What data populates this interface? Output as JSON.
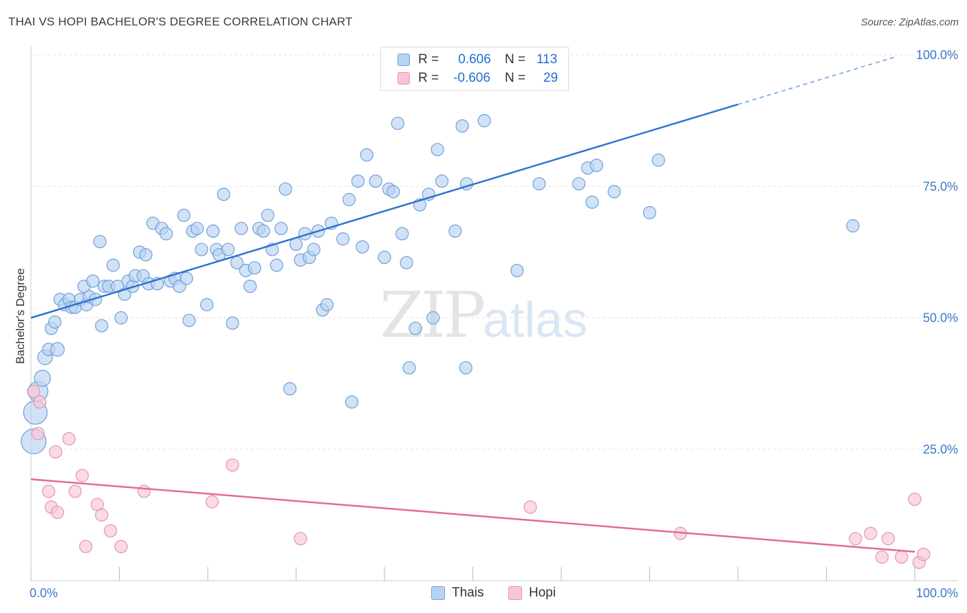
{
  "title": "THAI VS HOPI BACHELOR'S DEGREE CORRELATION CHART",
  "source": "Source: ZipAtlas.com",
  "watermark": {
    "zip": "ZIP",
    "atlas": "atlas"
  },
  "legend": {
    "rows": [
      {
        "r_label": "R =",
        "r_value": "0.606",
        "n_label": "N =",
        "n_value": "113"
      },
      {
        "r_label": "R =",
        "r_value": "-0.606",
        "n_label": "N =",
        "n_value": "29"
      }
    ]
  },
  "bottom_legend": {
    "thais": "Thais",
    "hopi": "Hopi"
  },
  "colors": {
    "thais_fill": "#b8d3f2",
    "thais_stroke": "#6f9fd8",
    "thais_line": "#2f73cf",
    "hopi_fill": "#f7c6d6",
    "hopi_stroke": "#e892ae",
    "hopi_line": "#e36a95",
    "axis_text": "#3b78c9",
    "grid": "#e3e3e3"
  },
  "chart_data": {
    "type": "scatter",
    "title": "THAI VS HOPI BACHELOR'S DEGREE CORRELATION CHART",
    "xlabel": "",
    "ylabel": "Bachelor's Degree",
    "xlim": [
      0,
      100
    ],
    "ylim": [
      0,
      100
    ],
    "x_tick_labels": [
      "0.0%",
      "100.0%"
    ],
    "y_tick_labels": [
      "25.0%",
      "50.0%",
      "75.0%",
      "100.0%"
    ],
    "y_ticks": [
      25,
      50,
      75,
      100
    ],
    "grid": true,
    "legend_position": "top-center",
    "series": [
      {
        "name": "Thais",
        "r": 0.606,
        "n": 113,
        "trend": {
          "x0": 0,
          "y0": 50.0,
          "x1": 80,
          "y1": 90.6,
          "dashed_to": [
            98,
            100
          ]
        },
        "points": [
          [
            0.3,
            26.5,
            2.0
          ],
          [
            0.5,
            32.0,
            1.9
          ],
          [
            0.8,
            36.0,
            1.6
          ],
          [
            1.3,
            38.5,
            1.3
          ],
          [
            1.6,
            42.5,
            1.2
          ],
          [
            2.0,
            44.0,
            1.0
          ],
          [
            3.0,
            44.0,
            1.1
          ],
          [
            2.3,
            48.0,
            1.0
          ],
          [
            2.7,
            49.2,
            1.0
          ],
          [
            3.3,
            53.5,
            1.0
          ],
          [
            3.8,
            52.5,
            1.0
          ],
          [
            4.3,
            53.5,
            1.0
          ],
          [
            4.6,
            52.0,
            1.0
          ],
          [
            5.0,
            52.0,
            1.0
          ],
          [
            5.6,
            53.5,
            1.0
          ],
          [
            6.0,
            56.0,
            1.0
          ],
          [
            6.3,
            52.5,
            1.0
          ],
          [
            6.6,
            54.0,
            1.0
          ],
          [
            7.0,
            57.0,
            1.0
          ],
          [
            7.3,
            53.5,
            1.0
          ],
          [
            7.8,
            64.5,
            1.0
          ],
          [
            8.0,
            48.5,
            1.0
          ],
          [
            8.3,
            56.0,
            1.0
          ],
          [
            8.8,
            56.0,
            1.0
          ],
          [
            9.3,
            60.0,
            1.0
          ],
          [
            9.8,
            56.0,
            1.0
          ],
          [
            10.2,
            50.0,
            1.0
          ],
          [
            10.6,
            54.5,
            1.0
          ],
          [
            11.0,
            57.0,
            1.0
          ],
          [
            11.5,
            56.0,
            1.0
          ],
          [
            11.8,
            58.0,
            1.0
          ],
          [
            12.3,
            62.5,
            1.0
          ],
          [
            12.7,
            58.0,
            1.0
          ],
          [
            13.0,
            62.0,
            1.0
          ],
          [
            13.3,
            56.5,
            1.0
          ],
          [
            13.8,
            68.0,
            1.0
          ],
          [
            14.3,
            56.5,
            1.0
          ],
          [
            14.8,
            67.0,
            1.0
          ],
          [
            15.3,
            66.0,
            1.0
          ],
          [
            15.8,
            57.0,
            1.0
          ],
          [
            16.3,
            57.5,
            1.0
          ],
          [
            16.8,
            56.0,
            1.0
          ],
          [
            17.3,
            69.5,
            1.0
          ],
          [
            17.6,
            57.5,
            1.0
          ],
          [
            17.9,
            49.5,
            1.0
          ],
          [
            18.3,
            66.5,
            1.0
          ],
          [
            18.8,
            67.0,
            1.0
          ],
          [
            19.3,
            63.0,
            1.0
          ],
          [
            19.9,
            52.5,
            1.0
          ],
          [
            20.6,
            66.5,
            1.0
          ],
          [
            21.0,
            63.0,
            1.0
          ],
          [
            21.3,
            62.0,
            1.0
          ],
          [
            21.8,
            73.5,
            1.0
          ],
          [
            22.3,
            63.0,
            1.0
          ],
          [
            22.8,
            49.0,
            1.0
          ],
          [
            23.3,
            60.5,
            1.0
          ],
          [
            23.8,
            67.0,
            1.0
          ],
          [
            24.3,
            59.0,
            1.0
          ],
          [
            24.8,
            56.0,
            1.0
          ],
          [
            25.3,
            59.5,
            1.0
          ],
          [
            25.8,
            67.0,
            1.0
          ],
          [
            26.3,
            66.5,
            1.0
          ],
          [
            26.8,
            69.5,
            1.0
          ],
          [
            27.3,
            63.0,
            1.0
          ],
          [
            27.8,
            60.0,
            1.0
          ],
          [
            28.3,
            67.0,
            1.0
          ],
          [
            28.8,
            74.5,
            1.0
          ],
          [
            29.3,
            36.5,
            1.0
          ],
          [
            30.0,
            64.0,
            1.0
          ],
          [
            30.5,
            61.0,
            1.0
          ],
          [
            31.0,
            66.0,
            1.0
          ],
          [
            31.5,
            61.5,
            1.0
          ],
          [
            32.0,
            63.0,
            1.0
          ],
          [
            32.5,
            66.5,
            1.0
          ],
          [
            33.0,
            51.5,
            1.0
          ],
          [
            33.5,
            52.5,
            1.0
          ],
          [
            34.0,
            68.0,
            1.0
          ],
          [
            35.3,
            65.0,
            1.0
          ],
          [
            36.0,
            72.5,
            1.0
          ],
          [
            36.3,
            34.0,
            1.0
          ],
          [
            37.0,
            76.0,
            1.0
          ],
          [
            37.5,
            63.5,
            1.0
          ],
          [
            38.0,
            81.0,
            1.0
          ],
          [
            39.0,
            76.0,
            1.0
          ],
          [
            40.0,
            61.5,
            1.0
          ],
          [
            40.5,
            74.5,
            1.0
          ],
          [
            41.0,
            74.0,
            1.0
          ],
          [
            41.5,
            87.0,
            1.0
          ],
          [
            42.0,
            66.0,
            1.0
          ],
          [
            42.5,
            60.5,
            1.0
          ],
          [
            42.8,
            40.5,
            1.0
          ],
          [
            43.5,
            48.0,
            1.0
          ],
          [
            44.0,
            71.5,
            1.0
          ],
          [
            45.0,
            73.5,
            1.0
          ],
          [
            45.5,
            50.0,
            1.0
          ],
          [
            46.0,
            82.0,
            1.0
          ],
          [
            46.5,
            76.0,
            1.0
          ],
          [
            48.0,
            66.5,
            1.0
          ],
          [
            48.8,
            86.5,
            1.0
          ],
          [
            49.2,
            40.5,
            1.0
          ],
          [
            49.3,
            75.5,
            1.0
          ],
          [
            51.3,
            87.5,
            1.0
          ],
          [
            55.0,
            59.0,
            1.0
          ],
          [
            57.5,
            75.5,
            1.0
          ],
          [
            62.0,
            75.5,
            1.0
          ],
          [
            63.0,
            78.5,
            1.0
          ],
          [
            63.5,
            72.0,
            1.0
          ],
          [
            64.0,
            79.0,
            1.0
          ],
          [
            66.0,
            74.0,
            1.0
          ],
          [
            70.0,
            70.0,
            1.0
          ],
          [
            71.0,
            80.0,
            1.0
          ],
          [
            93.0,
            67.5,
            1.0
          ]
        ]
      },
      {
        "name": "Hopi",
        "r": -0.606,
        "n": 29,
        "trend": {
          "x0": 0,
          "y0": 19.3,
          "x1": 100,
          "y1": 5.5
        },
        "points": [
          [
            0.3,
            36.0,
            1.0
          ],
          [
            0.8,
            28.0,
            1.0
          ],
          [
            1.0,
            34.0,
            1.0
          ],
          [
            2.0,
            17.0,
            1.0
          ],
          [
            2.3,
            14.0,
            1.0
          ],
          [
            2.8,
            24.5,
            1.0
          ],
          [
            3.0,
            13.0,
            1.0
          ],
          [
            4.3,
            27.0,
            1.0
          ],
          [
            5.0,
            17.0,
            1.0
          ],
          [
            5.8,
            20.0,
            1.0
          ],
          [
            6.2,
            6.5,
            1.0
          ],
          [
            7.5,
            14.5,
            1.0
          ],
          [
            8.0,
            12.5,
            1.0
          ],
          [
            9.0,
            9.5,
            1.0
          ],
          [
            10.2,
            6.5,
            1.0
          ],
          [
            12.8,
            17.0,
            1.0
          ],
          [
            20.5,
            15.0,
            1.0
          ],
          [
            22.8,
            22.0,
            1.0
          ],
          [
            30.5,
            8.0,
            1.0
          ],
          [
            56.5,
            14.0,
            1.0
          ],
          [
            73.5,
            9.0,
            1.0
          ],
          [
            93.3,
            8.0,
            1.0
          ],
          [
            95.0,
            9.0,
            1.0
          ],
          [
            96.3,
            4.5,
            1.0
          ],
          [
            97.0,
            8.0,
            1.0
          ],
          [
            98.5,
            4.5,
            1.0
          ],
          [
            100.0,
            15.5,
            1.0
          ],
          [
            100.5,
            3.5,
            1.0
          ],
          [
            101.0,
            5.0,
            1.0
          ]
        ]
      }
    ]
  }
}
